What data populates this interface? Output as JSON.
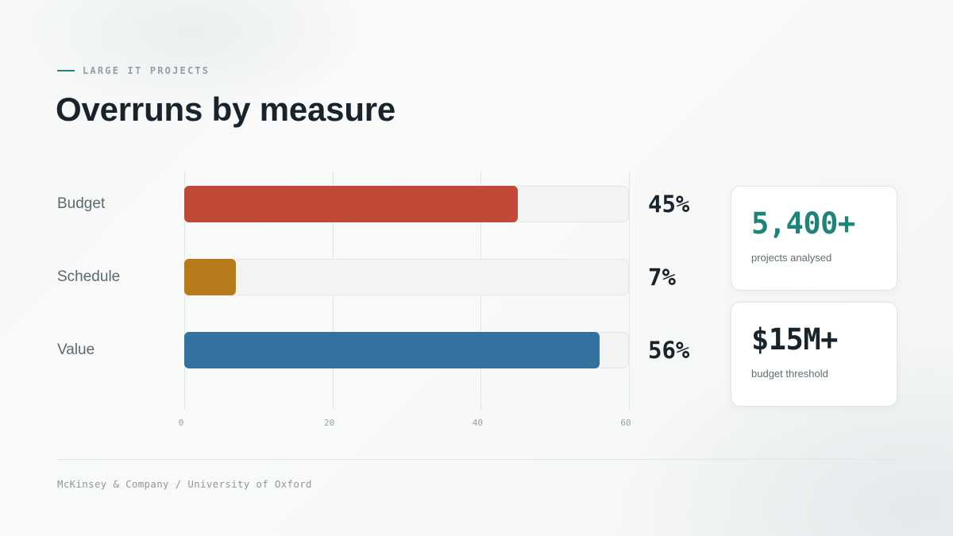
{
  "header": {
    "eyebrow": "LARGE IT PROJECTS",
    "title": "Overruns by measure"
  },
  "chart_data": {
    "type": "bar",
    "orientation": "horizontal",
    "categories": [
      "Budget",
      "Schedule",
      "Value"
    ],
    "values": [
      45,
      7,
      56
    ],
    "value_labels": [
      "45%",
      "7%",
      "56%"
    ],
    "xlim": [
      0,
      60
    ],
    "xticks": [
      0,
      20,
      40,
      60
    ],
    "xtick_labels": [
      "0",
      "20",
      "40",
      "60"
    ],
    "grid": true,
    "colors": [
      "#c04a37",
      "#b77a1b",
      "#33719f"
    ]
  },
  "stats": [
    {
      "value": "5,400+",
      "caption": "projects analysed",
      "color": "#1f8478"
    },
    {
      "value": "$15M+",
      "caption": "budget threshold",
      "color": "#18232c"
    }
  ],
  "footer": {
    "source": "McKinsey & Company / University of Oxford"
  }
}
